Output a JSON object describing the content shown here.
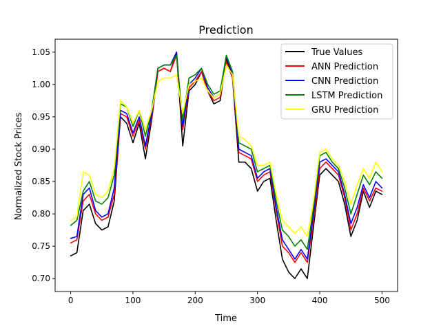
{
  "chart_data": {
    "type": "line",
    "title": "Prediction",
    "xlabel": "Time",
    "ylabel": "Normalized Stock Prices",
    "xlim": [
      -25,
      525
    ],
    "ylim": [
      0.68,
      1.07
    ],
    "xticks": [
      0,
      100,
      200,
      300,
      400,
      500
    ],
    "yticks": [
      0.7,
      0.75,
      0.8,
      0.85,
      0.9,
      0.95,
      1.0,
      1.05
    ],
    "grid": false,
    "legend_position": "top-right",
    "x": [
      0,
      10,
      20,
      30,
      40,
      50,
      60,
      70,
      80,
      90,
      100,
      110,
      120,
      130,
      140,
      150,
      160,
      170,
      180,
      190,
      200,
      210,
      220,
      230,
      240,
      250,
      260,
      270,
      280,
      290,
      300,
      310,
      320,
      330,
      340,
      350,
      360,
      370,
      380,
      390,
      400,
      410,
      420,
      430,
      440,
      450,
      460,
      470,
      480,
      490,
      500
    ],
    "series": [
      {
        "name": "True Values",
        "color": "#000000",
        "values": [
          0.735,
          0.74,
          0.805,
          0.815,
          0.785,
          0.775,
          0.78,
          0.82,
          0.95,
          0.94,
          0.91,
          0.94,
          0.885,
          0.945,
          1.02,
          1.025,
          1.02,
          1.05,
          0.905,
          0.99,
          1.0,
          1.02,
          0.99,
          0.97,
          0.975,
          1.04,
          1.01,
          0.88,
          0.88,
          0.87,
          0.835,
          0.85,
          0.855,
          0.79,
          0.73,
          0.71,
          0.7,
          0.715,
          0.7,
          0.78,
          0.86,
          0.87,
          0.86,
          0.85,
          0.815,
          0.765,
          0.79,
          0.835,
          0.81,
          0.835,
          0.83
        ]
      },
      {
        "name": "ANN Prediction",
        "color": "#ff0000",
        "values": [
          0.755,
          0.76,
          0.82,
          0.83,
          0.8,
          0.79,
          0.795,
          0.83,
          0.955,
          0.95,
          0.92,
          0.945,
          0.9,
          0.95,
          1.02,
          1.025,
          1.02,
          1.045,
          0.93,
          0.995,
          1.005,
          1.02,
          0.99,
          0.975,
          0.98,
          1.035,
          1.01,
          0.895,
          0.89,
          0.885,
          0.85,
          0.86,
          0.865,
          0.805,
          0.75,
          0.74,
          0.725,
          0.74,
          0.725,
          0.79,
          0.87,
          0.88,
          0.87,
          0.86,
          0.825,
          0.775,
          0.8,
          0.84,
          0.82,
          0.84,
          0.835
        ]
      },
      {
        "name": "CNN Prediction",
        "color": "#0000ff",
        "values": [
          0.762,
          0.765,
          0.83,
          0.84,
          0.805,
          0.795,
          0.8,
          0.84,
          0.96,
          0.955,
          0.925,
          0.95,
          0.905,
          0.955,
          1.025,
          1.03,
          1.03,
          1.05,
          0.935,
          1.0,
          1.01,
          1.025,
          0.995,
          0.98,
          0.985,
          1.045,
          1.015,
          0.9,
          0.895,
          0.89,
          0.855,
          0.865,
          0.87,
          0.81,
          0.76,
          0.745,
          0.73,
          0.745,
          0.73,
          0.8,
          0.88,
          0.885,
          0.875,
          0.865,
          0.83,
          0.785,
          0.81,
          0.845,
          0.825,
          0.85,
          0.84
        ]
      },
      {
        "name": "LSTM Prediction",
        "color": "#008000",
        "values": [
          0.782,
          0.79,
          0.835,
          0.85,
          0.82,
          0.815,
          0.825,
          0.86,
          0.97,
          0.965,
          0.935,
          0.96,
          0.92,
          0.96,
          1.025,
          1.03,
          1.03,
          1.045,
          0.945,
          1.01,
          1.015,
          1.025,
          1.0,
          0.985,
          0.99,
          1.045,
          1.02,
          0.91,
          0.905,
          0.9,
          0.865,
          0.87,
          0.875,
          0.82,
          0.775,
          0.765,
          0.75,
          0.76,
          0.745,
          0.81,
          0.89,
          0.895,
          0.88,
          0.87,
          0.84,
          0.8,
          0.83,
          0.86,
          0.845,
          0.865,
          0.855
        ]
      },
      {
        "name": "GRU Prediction",
        "color": "#ffff00",
        "values": [
          0.79,
          0.795,
          0.865,
          0.86,
          0.83,
          0.825,
          0.835,
          0.87,
          0.975,
          0.965,
          0.94,
          0.96,
          0.93,
          0.96,
          1.005,
          1.01,
          1.01,
          1.015,
          0.955,
          1.0,
          1.005,
          1.01,
          0.99,
          0.98,
          0.985,
          1.03,
          1.015,
          0.92,
          0.915,
          0.905,
          0.875,
          0.875,
          0.88,
          0.83,
          0.79,
          0.78,
          0.77,
          0.78,
          0.765,
          0.82,
          0.895,
          0.9,
          0.885,
          0.875,
          0.85,
          0.815,
          0.845,
          0.87,
          0.855,
          0.88,
          0.865
        ]
      }
    ]
  }
}
